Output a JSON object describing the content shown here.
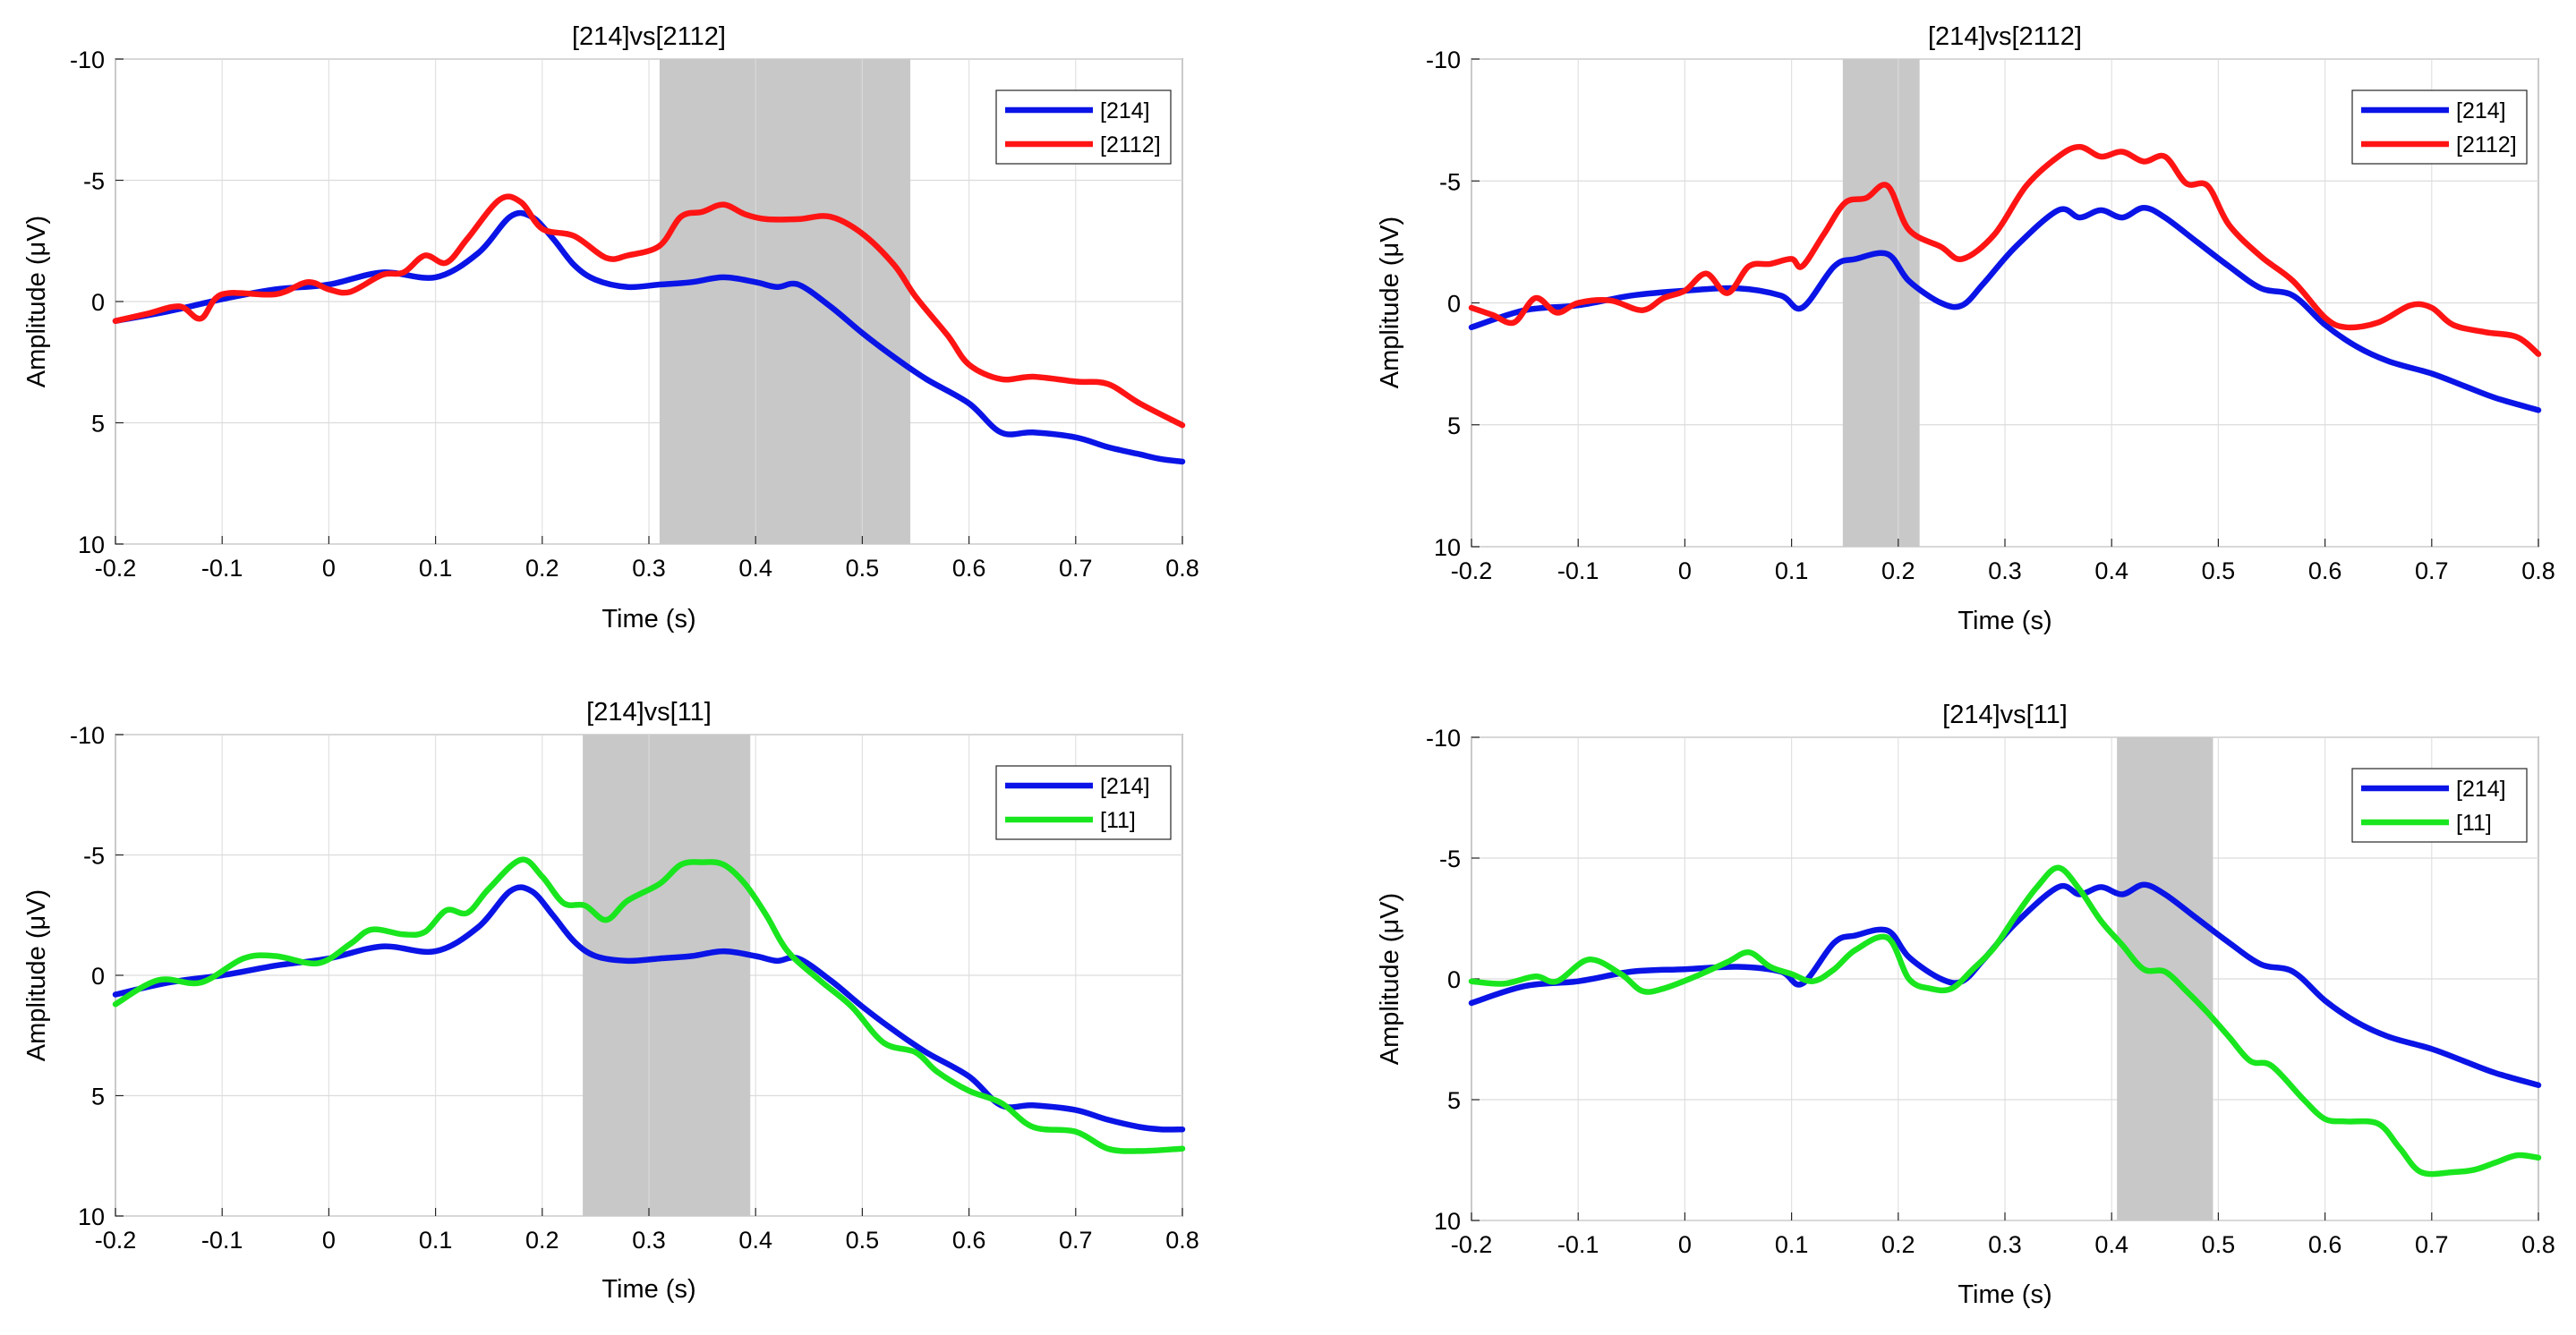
{
  "colors": {
    "blue": "#0a14e6",
    "red": "#ff1414",
    "green": "#19e61e",
    "shade": "#c8c8c8",
    "grid": "#dcdcdc",
    "axis": "#262626"
  },
  "chart_data": [
    {
      "type": "line",
      "title": "[214]vs[2112]",
      "xlabel": "Time (s)",
      "ylabel": "Amplitude (μV)",
      "xlim": [
        -0.2,
        0.8
      ],
      "ylim": [
        -10,
        10
      ],
      "y_reversed": true,
      "xticks": [
        "-0.2",
        "-0.1",
        "0",
        "0.1",
        "0.2",
        "0.3",
        "0.4",
        "0.5",
        "0.6",
        "0.7",
        "0.8"
      ],
      "yticks": [
        "-10",
        "-5",
        "0",
        "5",
        "10"
      ],
      "shaded_interval": [
        0.31,
        0.545
      ],
      "legend_location": "top-right",
      "series": [
        {
          "name": "[214]",
          "color": "blue",
          "x": [
            -0.2,
            -0.15,
            -0.1,
            -0.05,
            0,
            0.05,
            0.1,
            0.14,
            0.17,
            0.19,
            0.21,
            0.23,
            0.25,
            0.28,
            0.31,
            0.34,
            0.37,
            0.4,
            0.42,
            0.44,
            0.47,
            0.5,
            0.53,
            0.56,
            0.6,
            0.63,
            0.66,
            0.7,
            0.73,
            0.76,
            0.78,
            0.8
          ],
          "y": [
            0.8,
            0.4,
            -0.1,
            -0.5,
            -0.7,
            -1.2,
            -1.0,
            -2.0,
            -3.5,
            -3.5,
            -2.6,
            -1.5,
            -0.9,
            -0.6,
            -0.7,
            -0.8,
            -1.0,
            -0.8,
            -0.6,
            -0.7,
            0.2,
            1.3,
            2.3,
            3.2,
            4.2,
            5.4,
            5.4,
            5.6,
            6.0,
            6.3,
            6.5,
            6.6
          ]
        },
        {
          "name": "[2112]",
          "color": "red",
          "x": [
            -0.2,
            -0.17,
            -0.14,
            -0.12,
            -0.1,
            -0.05,
            -0.02,
            0,
            0.02,
            0.05,
            0.07,
            0.09,
            0.11,
            0.13,
            0.16,
            0.18,
            0.2,
            0.23,
            0.26,
            0.28,
            0.31,
            0.33,
            0.35,
            0.37,
            0.39,
            0.41,
            0.44,
            0.47,
            0.5,
            0.53,
            0.55,
            0.58,
            0.6,
            0.63,
            0.66,
            0.7,
            0.73,
            0.76,
            0.8
          ],
          "y": [
            0.8,
            0.5,
            0.2,
            0.7,
            -0.3,
            -0.3,
            -0.8,
            -0.5,
            -0.4,
            -1.1,
            -1.2,
            -1.9,
            -1.6,
            -2.6,
            -4.2,
            -4.1,
            -3.0,
            -2.7,
            -1.8,
            -1.9,
            -2.3,
            -3.5,
            -3.7,
            -4.0,
            -3.6,
            -3.4,
            -3.4,
            -3.5,
            -2.8,
            -1.5,
            -0.2,
            1.4,
            2.6,
            3.2,
            3.1,
            3.3,
            3.4,
            4.2,
            5.1
          ]
        }
      ]
    },
    {
      "type": "line",
      "title": "[214]vs[2112]",
      "xlabel": "Time (s)",
      "ylabel": "Amplitude (μV)",
      "xlim": [
        -0.2,
        0.8
      ],
      "ylim": [
        -10,
        10
      ],
      "y_reversed": true,
      "xticks": [
        "-0.2",
        "-0.1",
        "0",
        "0.1",
        "0.2",
        "0.3",
        "0.4",
        "0.5",
        "0.6",
        "0.7",
        "0.8"
      ],
      "yticks": [
        "-10",
        "-5",
        "0",
        "5",
        "10"
      ],
      "shaded_interval": [
        0.148,
        0.22
      ],
      "legend_location": "top-right",
      "series": [
        {
          "name": "[214]",
          "color": "blue",
          "x": [
            -0.2,
            -0.15,
            -0.1,
            -0.05,
            0,
            0.05,
            0.09,
            0.11,
            0.14,
            0.16,
            0.19,
            0.21,
            0.24,
            0.26,
            0.28,
            0.31,
            0.35,
            0.37,
            0.39,
            0.41,
            0.43,
            0.45,
            0.48,
            0.51,
            0.54,
            0.57,
            0.6,
            0.63,
            0.66,
            0.7,
            0.73,
            0.76,
            0.8
          ],
          "y": [
            1.0,
            0.3,
            0.1,
            -0.3,
            -0.5,
            -0.6,
            -0.3,
            0.2,
            -1.5,
            -1.8,
            -2.0,
            -0.9,
            0.0,
            0.1,
            -0.8,
            -2.3,
            -3.8,
            -3.5,
            -3.8,
            -3.5,
            -3.9,
            -3.5,
            -2.5,
            -1.5,
            -0.6,
            -0.3,
            0.9,
            1.8,
            2.4,
            2.9,
            3.4,
            3.9,
            4.4
          ]
        },
        {
          "name": "[2112]",
          "color": "red",
          "x": [
            -0.2,
            -0.18,
            -0.16,
            -0.14,
            -0.12,
            -0.1,
            -0.07,
            -0.04,
            -0.02,
            0,
            0.02,
            0.04,
            0.06,
            0.08,
            0.1,
            0.11,
            0.13,
            0.15,
            0.17,
            0.19,
            0.21,
            0.24,
            0.26,
            0.29,
            0.32,
            0.35,
            0.37,
            0.39,
            0.41,
            0.43,
            0.45,
            0.47,
            0.49,
            0.51,
            0.54,
            0.57,
            0.6,
            0.62,
            0.65,
            0.68,
            0.7,
            0.72,
            0.75,
            0.78,
            0.8
          ],
          "y": [
            0.2,
            0.5,
            0.8,
            -0.2,
            0.4,
            0,
            -0.1,
            0.3,
            -0.2,
            -0.5,
            -1.2,
            -0.4,
            -1.5,
            -1.6,
            -1.8,
            -1.5,
            -2.8,
            -4.1,
            -4.3,
            -4.8,
            -3.0,
            -2.3,
            -1.8,
            -2.8,
            -4.8,
            -6.0,
            -6.4,
            -6.0,
            -6.2,
            -5.8,
            -6.0,
            -4.9,
            -4.8,
            -3.2,
            -1.9,
            -0.9,
            0.6,
            1.0,
            0.8,
            0.1,
            0.2,
            0.9,
            1.2,
            1.4,
            2.1
          ]
        }
      ]
    },
    {
      "type": "line",
      "title": "[214]vs[11]",
      "xlabel": "Time (s)",
      "ylabel": "Amplitude (μV)",
      "xlim": [
        -0.2,
        0.8
      ],
      "ylim": [
        -10,
        10
      ],
      "y_reversed": true,
      "xticks": [
        "-0.2",
        "-0.1",
        "0",
        "0.1",
        "0.2",
        "0.3",
        "0.4",
        "0.5",
        "0.6",
        "0.7",
        "0.8"
      ],
      "yticks": [
        "-10",
        "-5",
        "0",
        "5",
        "10"
      ],
      "shaded_interval": [
        0.238,
        0.395
      ],
      "legend_location": "top-right",
      "series": [
        {
          "name": "[214]",
          "color": "blue",
          "x": [
            -0.2,
            -0.15,
            -0.1,
            -0.05,
            0,
            0.05,
            0.1,
            0.14,
            0.17,
            0.19,
            0.21,
            0.23,
            0.25,
            0.28,
            0.31,
            0.34,
            0.37,
            0.4,
            0.42,
            0.44,
            0.47,
            0.5,
            0.53,
            0.56,
            0.6,
            0.63,
            0.66,
            0.7,
            0.73,
            0.76,
            0.78,
            0.8
          ],
          "y": [
            0.8,
            0.3,
            0.0,
            -0.4,
            -0.7,
            -1.2,
            -1.0,
            -2.0,
            -3.5,
            -3.5,
            -2.5,
            -1.4,
            -0.8,
            -0.6,
            -0.7,
            -0.8,
            -1.0,
            -0.8,
            -0.6,
            -0.7,
            0.2,
            1.3,
            2.3,
            3.2,
            4.2,
            5.4,
            5.4,
            5.6,
            6.0,
            6.3,
            6.4,
            6.4
          ]
        },
        {
          "name": "[11]",
          "color": "green",
          "x": [
            -0.2,
            -0.16,
            -0.12,
            -0.08,
            -0.05,
            -0.01,
            0.02,
            0.04,
            0.07,
            0.09,
            0.11,
            0.13,
            0.15,
            0.18,
            0.2,
            0.22,
            0.24,
            0.26,
            0.28,
            0.31,
            0.33,
            0.35,
            0.37,
            0.39,
            0.41,
            0.43,
            0.46,
            0.49,
            0.52,
            0.55,
            0.57,
            0.6,
            0.63,
            0.66,
            0.7,
            0.73,
            0.76,
            0.8
          ],
          "y": [
            1.2,
            0.2,
            0.3,
            -0.7,
            -0.8,
            -0.5,
            -1.3,
            -1.9,
            -1.7,
            -1.8,
            -2.7,
            -2.6,
            -3.6,
            -4.8,
            -4.1,
            -3.0,
            -2.9,
            -2.3,
            -3.1,
            -3.8,
            -4.6,
            -4.7,
            -4.6,
            -3.8,
            -2.5,
            -1.0,
            0.2,
            1.3,
            2.8,
            3.2,
            4.0,
            4.8,
            5.3,
            6.3,
            6.5,
            7.2,
            7.3,
            7.2
          ]
        }
      ]
    },
    {
      "type": "line",
      "title": "[214]vs[11]",
      "xlabel": "Time (s)",
      "ylabel": "Amplitude (μV)",
      "xlim": [
        -0.2,
        0.8
      ],
      "ylim": [
        -10,
        10
      ],
      "y_reversed": true,
      "xticks": [
        "-0.2",
        "-0.1",
        "0",
        "0.1",
        "0.2",
        "0.3",
        "0.4",
        "0.5",
        "0.6",
        "0.7",
        "0.8"
      ],
      "yticks": [
        "-10",
        "-5",
        "0",
        "5",
        "10"
      ],
      "shaded_interval": [
        0.405,
        0.495
      ],
      "legend_location": "top-right",
      "series": [
        {
          "name": "[214]",
          "color": "blue",
          "x": [
            -0.2,
            -0.15,
            -0.1,
            -0.05,
            0,
            0.05,
            0.09,
            0.11,
            0.14,
            0.16,
            0.19,
            0.21,
            0.24,
            0.26,
            0.28,
            0.31,
            0.35,
            0.37,
            0.39,
            0.41,
            0.43,
            0.45,
            0.48,
            0.51,
            0.54,
            0.57,
            0.6,
            0.63,
            0.66,
            0.7,
            0.73,
            0.76,
            0.8
          ],
          "y": [
            1.0,
            0.3,
            0.1,
            -0.3,
            -0.4,
            -0.5,
            -0.3,
            0.2,
            -1.5,
            -1.8,
            -2.0,
            -0.9,
            0.0,
            0.1,
            -0.8,
            -2.3,
            -3.8,
            -3.5,
            -3.8,
            -3.5,
            -3.9,
            -3.5,
            -2.5,
            -1.5,
            -0.6,
            -0.3,
            0.9,
            1.8,
            2.4,
            2.9,
            3.4,
            3.9,
            4.4
          ]
        },
        {
          "name": "[11]",
          "color": "green",
          "x": [
            -0.2,
            -0.17,
            -0.14,
            -0.12,
            -0.09,
            -0.06,
            -0.04,
            -0.02,
            0.01,
            0.04,
            0.06,
            0.08,
            0.1,
            0.12,
            0.14,
            0.16,
            0.19,
            0.21,
            0.23,
            0.25,
            0.27,
            0.29,
            0.31,
            0.33,
            0.35,
            0.37,
            0.39,
            0.41,
            0.43,
            0.45,
            0.47,
            0.49,
            0.51,
            0.53,
            0.55,
            0.58,
            0.6,
            0.62,
            0.65,
            0.67,
            0.69,
            0.72,
            0.74,
            0.76,
            0.78,
            0.8
          ],
          "y": [
            0.1,
            0.2,
            -0.1,
            0.1,
            -0.8,
            -0.2,
            0.5,
            0.4,
            -0.1,
            -0.7,
            -1.1,
            -0.5,
            -0.2,
            0.1,
            -0.4,
            -1.2,
            -1.7,
            0.0,
            0.4,
            0.4,
            -0.4,
            -1.3,
            -2.6,
            -3.8,
            -4.6,
            -3.7,
            -2.4,
            -1.4,
            -0.4,
            -0.3,
            0.5,
            1.4,
            2.4,
            3.4,
            3.6,
            5.0,
            5.8,
            5.9,
            6.0,
            7.0,
            8.0,
            8.0,
            7.9,
            7.6,
            7.3,
            7.4
          ]
        }
      ]
    }
  ]
}
